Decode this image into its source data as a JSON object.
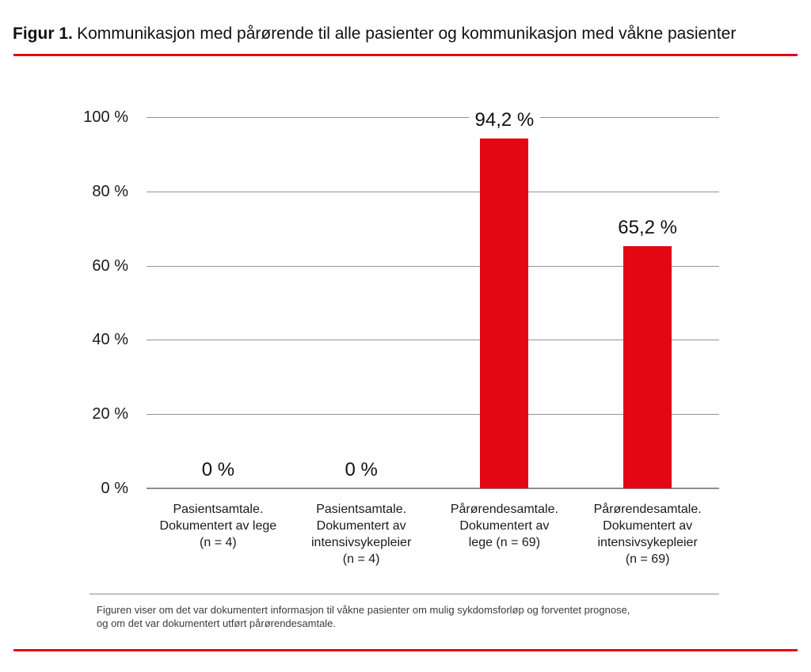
{
  "header": {
    "figure_label": "Figur 1.",
    "title": "Kommunikasjon med pårørende til alle pasienter og kommunikasjon med våkne pasienter"
  },
  "caption": {
    "lines": [
      "Figuren viser om det var dokumentert informasjon til våkne pasienter om mulig sykdomsforløp og forventet prognose,",
      "og om det var dokumentert utført pårørendesamtale."
    ]
  },
  "colors": {
    "brand_red": "#e30613",
    "gridline": "#949494",
    "text": "#1a1a1a",
    "caption_text": "#3c3c3c",
    "divider": "#8c8c8c"
  },
  "chart_data": {
    "type": "bar",
    "title": "",
    "xlabel": "",
    "ylabel": "",
    "categories": [
      "Pasientsamtale. Dokumentert av lege (n = 4)",
      "Pasientsamtale. Dokumentert av intensivsykepleier (n = 4)",
      "Pårørendesamtale. Dokumentert av lege (n = 69)",
      "Pårørendesamtale. Dokumentert av intensivsykepleier (n = 69)"
    ],
    "category_lines": [
      [
        "Pasientsamtale.",
        "Dokumentert av lege",
        "(n = 4)"
      ],
      [
        "Pasientsamtale.",
        "Dokumentert av",
        "intensivsykepleier",
        "(n = 4)"
      ],
      [
        "Pårørendesamtale.",
        "Dokumentert av",
        "lege (n = 69)"
      ],
      [
        "Pårørendesamtale.",
        "Dokumentert av",
        "intensivsykepleier",
        "(n = 69)"
      ]
    ],
    "values": [
      0,
      0,
      94.2,
      65.2
    ],
    "value_labels": [
      "0 %",
      "0 %",
      "94,2 %",
      "65,2 %"
    ],
    "ylim": [
      0,
      100
    ],
    "yticks": [
      0,
      20,
      40,
      60,
      80,
      100
    ],
    "ytick_labels": [
      "0 %",
      "20 %",
      "40 %",
      "60 %",
      "80 %",
      "100 %"
    ],
    "grid": true,
    "legend": false,
    "bar_color": "#e30613"
  }
}
